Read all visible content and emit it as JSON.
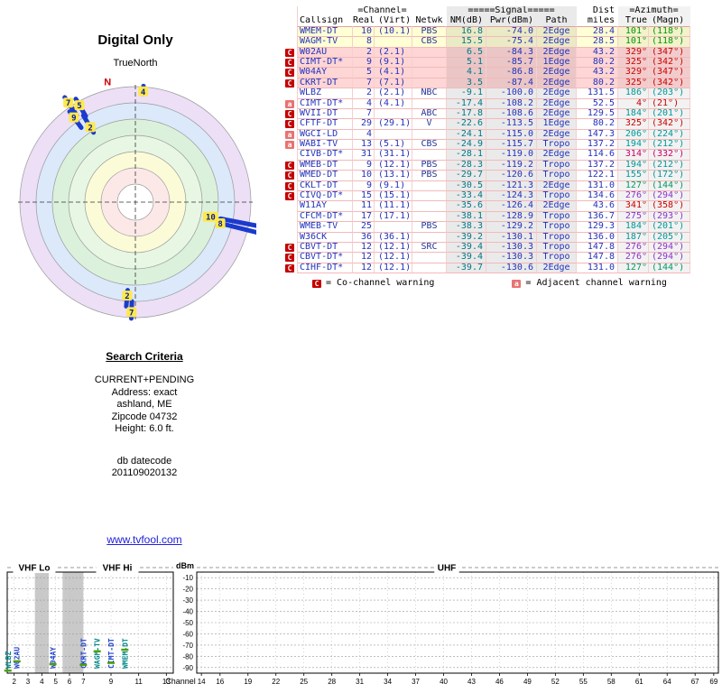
{
  "radar": {
    "title": "Digital Only",
    "subtitle": "TrueNorth",
    "north_label": "N",
    "north_azimuth": 347,
    "rings": [
      {
        "r": 128,
        "fill": "#ecdff6"
      },
      {
        "r": 110,
        "fill": "#dbe9fa"
      },
      {
        "r": 92,
        "fill": "#dbf1db"
      },
      {
        "r": 74,
        "fill": "#e7f7e3"
      },
      {
        "r": 56,
        "fill": "#fbfbd8"
      },
      {
        "r": 38,
        "fill": "#fde8e8"
      },
      {
        "r": 20,
        "fill": "#ffffff"
      }
    ],
    "markers": [
      {
        "label": "10",
        "azimuth": 101,
        "r0": 96,
        "r1": 145,
        "label_r": 85
      },
      {
        "label": "8",
        "azimuth": 104,
        "r0": 97,
        "r1": 141,
        "label_r": 97
      },
      {
        "label": "7",
        "azimuth": 326,
        "r0": 116,
        "r1": 140,
        "label_r": 133
      },
      {
        "label": "5",
        "azimuth": 330,
        "r0": 110,
        "r1": 132,
        "label_r": 124
      },
      {
        "label": "9",
        "azimuth": 324,
        "r0": 102,
        "r1": 124,
        "label_r": 116
      },
      {
        "label": "2",
        "azimuth": 329,
        "r0": 90,
        "r1": 112,
        "label_r": 97
      },
      {
        "label": "4",
        "azimuth": 4,
        "r0": 120,
        "r1": 129,
        "label_r": 123
      },
      {
        "label": "2",
        "azimuth": 185,
        "r0": 98,
        "r1": 116,
        "label_r": 104
      },
      {
        "label": "7",
        "azimuth": 182,
        "r0": 110,
        "r1": 129,
        "label_r": 122
      }
    ]
  },
  "table": {
    "group_headers": {
      "channel": "=Channel=",
      "signal": "=====Signal=====",
      "dist": "Dist",
      "azimuth": "=Azimuth="
    },
    "columns": {
      "callsign": "Callsign",
      "real": "Real",
      "virt": "(Virt)",
      "netwk": "Netwk",
      "nm": "NM(dB)",
      "pwr": "Pwr(dBm)",
      "path": "Path",
      "miles": "miles",
      "true": "True",
      "magn": "(Magn)"
    },
    "rows": [
      {
        "warn": "",
        "callsign": "WMEM-DT",
        "real": "10",
        "virt": "(10.1)",
        "netwk": "PBS",
        "nm": "16.8",
        "pwr": "-74.0",
        "path": "2Edge",
        "miles": "28.4",
        "true": "101°",
        "magn": "(118°)",
        "bg": "#ffffd5",
        "az_color": "#009900"
      },
      {
        "warn": "",
        "callsign": "WAGM-TV",
        "real": "8",
        "virt": "",
        "netwk": "CBS",
        "nm": "15.5",
        "pwr": "-75.4",
        "path": "2Edge",
        "miles": "28.5",
        "true": "101°",
        "magn": "(118°)",
        "bg": "#ffffd5",
        "az_color": "#009900"
      },
      {
        "warn": "C",
        "callsign": "W02AU",
        "real": "2",
        "virt": "(2.1)",
        "netwk": "",
        "nm": "6.5",
        "pwr": "-84.3",
        "path": "2Edge",
        "miles": "43.2",
        "true": "329°",
        "magn": "(347°)",
        "bg": "#ffd6d6",
        "az_color": "#cc0000"
      },
      {
        "warn": "C",
        "callsign": "CIMT-DT*",
        "real": "9",
        "virt": "(9.1)",
        "netwk": "",
        "nm": "5.1",
        "pwr": "-85.7",
        "path": "1Edge",
        "miles": "80.2",
        "true": "325°",
        "magn": "(342°)",
        "bg": "#ffd6d6",
        "az_color": "#cc0000"
      },
      {
        "warn": "C",
        "callsign": "W04AY",
        "real": "5",
        "virt": "(4.1)",
        "netwk": "",
        "nm": "4.1",
        "pwr": "-86.8",
        "path": "2Edge",
        "miles": "43.2",
        "true": "329°",
        "magn": "(347°)",
        "bg": "#ffd6d6",
        "az_color": "#cc0000"
      },
      {
        "warn": "C",
        "callsign": "CKRT-DT",
        "real": "7",
        "virt": "(7.1)",
        "netwk": "",
        "nm": "3.5",
        "pwr": "-87.4",
        "path": "2Edge",
        "miles": "80.2",
        "true": "325°",
        "magn": "(342°)",
        "bg": "#ffd6d6",
        "az_color": "#cc0000"
      },
      {
        "warn": "",
        "callsign": "WLBZ",
        "real": "2",
        "virt": "(2.1)",
        "netwk": "NBC",
        "nm": "-9.1",
        "pwr": "-100.0",
        "path": "2Edge",
        "miles": "131.5",
        "true": "186°",
        "magn": "(203°)",
        "bg": "#ffffff",
        "az_color": "#009999"
      },
      {
        "warn": "a",
        "callsign": "CIMT-DT*",
        "real": "4",
        "virt": "(4.1)",
        "netwk": "",
        "nm": "-17.4",
        "pwr": "-108.2",
        "path": "2Edge",
        "miles": "52.5",
        "true": "4°",
        "magn": "(21°)",
        "bg": "#ffffff",
        "az_color": "#cc0000"
      },
      {
        "warn": "C",
        "callsign": "WVII-DT",
        "real": "7",
        "virt": "",
        "netwk": "ABC",
        "nm": "-17.8",
        "pwr": "-108.6",
        "path": "2Edge",
        "miles": "129.5",
        "true": "184°",
        "magn": "(201°)",
        "bg": "#ffffff",
        "az_color": "#009999"
      },
      {
        "warn": "C",
        "callsign": "CFTF-DT",
        "real": "29",
        "virt": "(29.1)",
        "netwk": "V",
        "nm": "-22.6",
        "pwr": "-113.5",
        "path": "1Edge",
        "miles": "80.2",
        "true": "325°",
        "magn": "(342°)",
        "bg": "#ffffff",
        "az_color": "#cc0000"
      },
      {
        "warn": "a",
        "callsign": "WGCI-LD",
        "real": "4",
        "virt": "",
        "netwk": "",
        "nm": "-24.1",
        "pwr": "-115.0",
        "path": "2Edge",
        "miles": "147.3",
        "true": "206°",
        "magn": "(224°)",
        "bg": "#ffffff",
        "az_color": "#009999"
      },
      {
        "warn": "a",
        "callsign": "WABI-TV",
        "real": "13",
        "virt": "(5.1)",
        "netwk": "CBS",
        "nm": "-24.9",
        "pwr": "-115.7",
        "path": "Tropo",
        "miles": "137.2",
        "true": "194°",
        "magn": "(212°)",
        "bg": "#ffffff",
        "az_color": "#009999"
      },
      {
        "warn": "",
        "callsign": "CIVB-DT*",
        "real": "31",
        "virt": "(31.1)",
        "netwk": "",
        "nm": "-28.1",
        "pwr": "-119.0",
        "path": "2Edge",
        "miles": "114.6",
        "true": "314°",
        "magn": "(332°)",
        "bg": "#ffffff",
        "az_color": "#cc0066"
      },
      {
        "warn": "C",
        "callsign": "WMEB-DT",
        "real": "9",
        "virt": "(12.1)",
        "netwk": "PBS",
        "nm": "-28.3",
        "pwr": "-119.2",
        "path": "Tropo",
        "miles": "137.2",
        "true": "194°",
        "magn": "(212°)",
        "bg": "#ffffff",
        "az_color": "#009999"
      },
      {
        "warn": "C",
        "callsign": "WMED-DT",
        "real": "10",
        "virt": "(13.1)",
        "netwk": "PBS",
        "nm": "-29.7",
        "pwr": "-120.6",
        "path": "Tropo",
        "miles": "122.1",
        "true": "155°",
        "magn": "(172°)",
        "bg": "#ffffff",
        "az_color": "#009999"
      },
      {
        "warn": "C",
        "callsign": "CKLT-DT",
        "real": "9",
        "virt": "(9.1)",
        "netwk": "",
        "nm": "-30.5",
        "pwr": "-121.3",
        "path": "2Edge",
        "miles": "131.0",
        "true": "127°",
        "magn": "(144°)",
        "bg": "#ffffff",
        "az_color": "#009966"
      },
      {
        "warn": "C",
        "callsign": "CIVQ-DT*",
        "real": "15",
        "virt": "(15.1)",
        "netwk": "",
        "nm": "-33.4",
        "pwr": "-124.3",
        "path": "Tropo",
        "miles": "134.6",
        "true": "276°",
        "magn": "(294°)",
        "bg": "#ffffff",
        "az_color": "#8833cc"
      },
      {
        "warn": "",
        "callsign": "W11AY",
        "real": "11",
        "virt": "(11.1)",
        "netwk": "",
        "nm": "-35.6",
        "pwr": "-126.4",
        "path": "2Edge",
        "miles": "43.6",
        "true": "341°",
        "magn": "(358°)",
        "bg": "#ffffff",
        "az_color": "#cc0000"
      },
      {
        "warn": "",
        "callsign": "CFCM-DT*",
        "real": "17",
        "virt": "(17.1)",
        "netwk": "",
        "nm": "-38.1",
        "pwr": "-128.9",
        "path": "Tropo",
        "miles": "136.7",
        "true": "275°",
        "magn": "(293°)",
        "bg": "#ffffff",
        "az_color": "#8833cc"
      },
      {
        "warn": "",
        "callsign": "WMEB-TV",
        "real": "25",
        "virt": "",
        "netwk": "PBS",
        "nm": "-38.3",
        "pwr": "-129.2",
        "path": "Tropo",
        "miles": "129.3",
        "true": "184°",
        "magn": "(201°)",
        "bg": "#ffffff",
        "az_color": "#009999"
      },
      {
        "warn": "",
        "callsign": "W36CK",
        "real": "36",
        "virt": "(36.1)",
        "netwk": "",
        "nm": "-39.2",
        "pwr": "-130.1",
        "path": "Tropo",
        "miles": "136.0",
        "true": "187°",
        "magn": "(205°)",
        "bg": "#ffffff",
        "az_color": "#009999"
      },
      {
        "warn": "C",
        "callsign": "CBVT-DT",
        "real": "12",
        "virt": "(12.1)",
        "netwk": "SRC",
        "nm": "-39.4",
        "pwr": "-130.3",
        "path": "Tropo",
        "miles": "147.8",
        "true": "276°",
        "magn": "(294°)",
        "bg": "#ffffff",
        "az_color": "#8833cc"
      },
      {
        "warn": "C",
        "callsign": "CBVT-DT*",
        "real": "12",
        "virt": "(12.1)",
        "netwk": "",
        "nm": "-39.4",
        "pwr": "-130.3",
        "path": "Tropo",
        "miles": "147.8",
        "true": "276°",
        "magn": "(294°)",
        "bg": "#ffffff",
        "az_color": "#8833cc"
      },
      {
        "warn": "C",
        "callsign": "CIHF-DT*",
        "real": "12",
        "virt": "(12.1)",
        "netwk": "",
        "nm": "-39.7",
        "pwr": "-130.6",
        "path": "2Edge",
        "miles": "131.0",
        "true": "127°",
        "magn": "(144°)",
        "bg": "#ffffff",
        "az_color": "#009966"
      }
    ]
  },
  "legend": {
    "co": {
      "symbol": "C",
      "text": "= Co-channel warning"
    },
    "adj": {
      "symbol": "a",
      "text": "= Adjacent channel warning"
    }
  },
  "search": {
    "title": "Search Criteria",
    "lines": [
      "CURRENT+PENDING",
      "Address: exact",
      "ashland, ME",
      "Zipcode 04732",
      "Height: 6.0 ft."
    ],
    "db_label": "db datecode",
    "db_value": "201109020132"
  },
  "link": {
    "text": "www.tvfool.com"
  },
  "chart_data": {
    "type": "spectrum-bar",
    "ylabel": "dBm",
    "xlabel": "Channel",
    "ylim": [
      -95,
      -5
    ],
    "yticks": [
      -10,
      -20,
      -30,
      -40,
      -50,
      -60,
      -70,
      -80,
      -90
    ],
    "bands": [
      {
        "label": "VHF Lo",
        "ch_from": 2,
        "ch_to": 6
      },
      {
        "label": "VHF Hi",
        "ch_from": 7,
        "ch_to": 13
      },
      {
        "label": "UHF",
        "ch_from": 14,
        "ch_to": 69
      }
    ],
    "vhf_panel": {
      "ch_range": [
        1.5,
        13.5
      ],
      "xticks": [
        2,
        3,
        4,
        5,
        6,
        7,
        9,
        11,
        13
      ],
      "gray_bands": [
        [
          3.5,
          4.5
        ],
        [
          5.5,
          7.0
        ]
      ]
    },
    "uhf_panel": {
      "ch_range": [
        13.5,
        69.5
      ],
      "xticks": [
        14,
        16,
        19,
        22,
        25,
        28,
        31,
        34,
        37,
        40,
        43,
        46,
        49,
        52,
        55,
        58,
        61,
        64,
        67,
        69
      ]
    },
    "stations": [
      {
        "callsign": "WLBZ",
        "channel": 2,
        "dbm": -100.0,
        "color": "#008888",
        "x_offset": -0.45
      },
      {
        "callsign": "W02AU",
        "channel": 2,
        "dbm": -84.3,
        "color": "#2244cc",
        "x_offset": 0.2
      },
      {
        "callsign": "W04AY",
        "channel": 5,
        "dbm": -86.8,
        "color": "#2244cc",
        "x_offset": -0.2
      },
      {
        "callsign": "CKRT-DT",
        "channel": 7,
        "dbm": -87.4,
        "color": "#2244cc",
        "x_offset": 0
      },
      {
        "callsign": "WAGM-TV",
        "channel": 8,
        "dbm": -75.4,
        "color": "#008888",
        "x_offset": 0
      },
      {
        "callsign": "CIMT-DT",
        "channel": 9,
        "dbm": -85.7,
        "color": "#2244cc",
        "x_offset": 0
      },
      {
        "callsign": "WMEM-DT",
        "channel": 10,
        "dbm": -74.0,
        "color": "#008888",
        "x_offset": 0
      }
    ]
  }
}
